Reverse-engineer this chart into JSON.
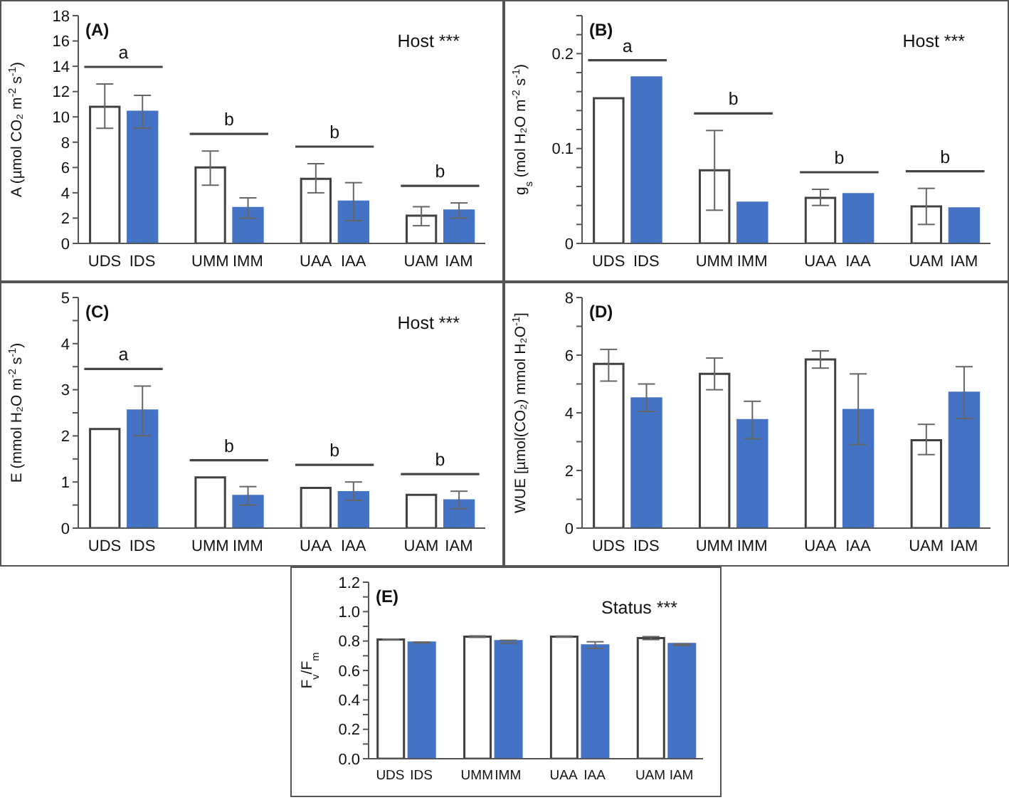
{
  "chart_data": [
    {
      "type": "bar",
      "title": "(A)",
      "ylabel": "A (µmol CO₂ m$^{-2}$ s$^{-1}$)",
      "categories": [
        "UDS",
        "IDS",
        "UMM",
        "IMM",
        "UAA",
        "IAA",
        "UAM",
        "IAM"
      ],
      "values": [
        10.8,
        10.4,
        6.0,
        2.8,
        5.1,
        3.3,
        2.2,
        2.6
      ],
      "colors": [
        "#ffffff",
        "#4472c4",
        "#ffffff",
        "#4472c4",
        "#ffffff",
        "#4472c4",
        "#ffffff",
        "#4472c4"
      ],
      "errors": [
        [
          9.1,
          12.6
        ],
        [
          9.1,
          11.7
        ],
        [
          4.6,
          7.3
        ],
        [
          2.0,
          3.6
        ],
        [
          4.0,
          6.3
        ],
        [
          1.8,
          4.8
        ],
        [
          1.4,
          2.9
        ],
        [
          2.0,
          3.2
        ]
      ],
      "ylim": [
        0,
        18
      ],
      "yticks": [
        0,
        2,
        4,
        6,
        8,
        10,
        12,
        14,
        16,
        18
      ],
      "annotations": [
        "Host ***",
        "a",
        "b",
        "b",
        "b"
      ]
    },
    {
      "type": "bar",
      "title": "(B)",
      "ylabel": "g$_{s}$ (mol H₂O m$^{-2}$ s$^{-1}$)",
      "categories": [
        "UDS",
        "IDS",
        "UMM",
        "IMM",
        "UAA",
        "IAA",
        "UAM",
        "IAM"
      ],
      "values": [
        0.153,
        0.175,
        0.077,
        0.043,
        0.048,
        0.052,
        0.039,
        0.037
      ],
      "colors": [
        "#ffffff",
        "#4472c4",
        "#ffffff",
        "#4472c4",
        "#ffffff",
        "#4472c4",
        "#ffffff",
        "#4472c4"
      ],
      "errors": [
        null,
        null,
        [
          0.035,
          0.119
        ],
        null,
        [
          0.04,
          0.057
        ],
        null,
        [
          0.02,
          0.058
        ],
        null
      ],
      "ylim": [
        0,
        0.24
      ],
      "yticks": [
        0,
        {
          "value": 0.02,
          "label": null
        },
        {
          "value": 0.04,
          "label": null
        },
        {
          "value": 0.06,
          "label": null
        },
        {
          "value": 0.08,
          "label": null
        },
        0.1,
        {
          "value": 0.12,
          "label": null
        },
        {
          "value": 0.14,
          "label": null
        },
        {
          "value": 0.16,
          "label": null
        },
        {
          "value": 0.18,
          "label": null
        },
        0.2,
        {
          "value": 0.22,
          "label": null
        },
        {
          "value": 0.24,
          "label": null
        }
      ],
      "annotations": [
        "Host ***",
        "a",
        "b",
        "b",
        "b"
      ]
    },
    {
      "type": "bar",
      "title": "(C)",
      "ylabel": "E (mmol H₂O m$^{-2}$ s$^{-1}$)",
      "categories": [
        "UDS",
        "IDS",
        "UMM",
        "IMM",
        "UAA",
        "IAA",
        "UAM",
        "IAM"
      ],
      "values": [
        2.15,
        2.55,
        1.1,
        0.7,
        0.87,
        0.78,
        0.72,
        0.6
      ],
      "colors": [
        "#ffffff",
        "#4472c4",
        "#ffffff",
        "#4472c4",
        "#ffffff",
        "#4472c4",
        "#ffffff",
        "#4472c4"
      ],
      "errors": [
        null,
        [
          2.0,
          3.08
        ],
        null,
        [
          0.5,
          0.9
        ],
        null,
        [
          0.6,
          1.0
        ],
        null,
        [
          0.42,
          0.8
        ]
      ],
      "ylim": [
        0,
        5
      ],
      "yticks": [
        0,
        {
          "value": 0.5,
          "label": null
        },
        1,
        {
          "value": 1.5,
          "label": null
        },
        2,
        {
          "value": 2.5,
          "label": null
        },
        3,
        {
          "value": 3.5,
          "label": null
        },
        4,
        {
          "value": 4.5,
          "label": null
        },
        5
      ],
      "annotations": [
        "Host ***",
        "a",
        "b",
        "b",
        "b"
      ]
    },
    {
      "type": "bar",
      "title": "(D)",
      "ylabel": "WUE [µmol(CO₂) mmol H₂O$^{-1}$]",
      "categories": [
        "UDS",
        "IDS",
        "UMM",
        "IMM",
        "UAA",
        "IAA",
        "UAM",
        "IAM"
      ],
      "values": [
        5.7,
        4.5,
        5.35,
        3.75,
        5.85,
        4.1,
        3.05,
        4.7
      ],
      "colors": [
        "#ffffff",
        "#4472c4",
        "#ffffff",
        "#4472c4",
        "#ffffff",
        "#4472c4",
        "#ffffff",
        "#4472c4"
      ],
      "errors": [
        [
          5.1,
          6.2
        ],
        [
          4.05,
          5.0
        ],
        [
          4.8,
          5.9
        ],
        [
          3.1,
          4.4
        ],
        [
          5.55,
          6.15
        ],
        [
          2.9,
          5.35
        ],
        [
          2.55,
          3.6
        ],
        [
          3.8,
          5.6
        ]
      ],
      "ylim": [
        0,
        8
      ],
      "yticks": [
        0,
        {
          "value": 1,
          "label": null
        },
        2,
        {
          "value": 3,
          "label": null
        },
        4,
        {
          "value": 5,
          "label": null
        },
        6,
        {
          "value": 7,
          "label": null
        },
        8
      ]
    },
    {
      "type": "bar",
      "title": "(E)",
      "ylabel": "F$_{v}$/F$_{m}$",
      "categories": [
        "UDS",
        "IDS",
        "UMM",
        "IMM",
        "UAA",
        "IAA",
        "UAM",
        "IAM"
      ],
      "values": [
        0.81,
        0.79,
        0.83,
        0.8,
        0.83,
        0.77,
        0.82,
        0.78
      ],
      "colors": [
        "#ffffff",
        "#4472c4",
        "#ffffff",
        "#4472c4",
        "#ffffff",
        "#4472c4",
        "#ffffff",
        "#4472c4"
      ],
      "errors": [
        [
          0.807,
          0.813
        ],
        [
          0.787,
          0.793
        ],
        [
          0.825,
          0.835
        ],
        [
          0.785,
          0.805
        ],
        [
          0.826,
          0.834
        ],
        [
          0.75,
          0.795
        ],
        [
          0.81,
          0.83
        ],
        [
          0.77,
          0.78
        ]
      ],
      "ylim": [
        0,
        1.2
      ],
      "yticks": [
        {
          "value": 0,
          "label": "0.0"
        },
        {
          "value": 0.1,
          "label": null
        },
        0.2,
        {
          "value": 0.3,
          "label": null
        },
        0.4,
        {
          "value": 0.5,
          "label": null
        },
        0.6,
        {
          "value": 0.7,
          "label": null
        },
        0.8,
        {
          "value": 0.9,
          "label": null
        },
        {
          "value": 1,
          "label": "1.0"
        },
        {
          "value": 1.1,
          "label": null
        },
        1.2
      ],
      "annotations": [
        "Status ***"
      ]
    }
  ]
}
